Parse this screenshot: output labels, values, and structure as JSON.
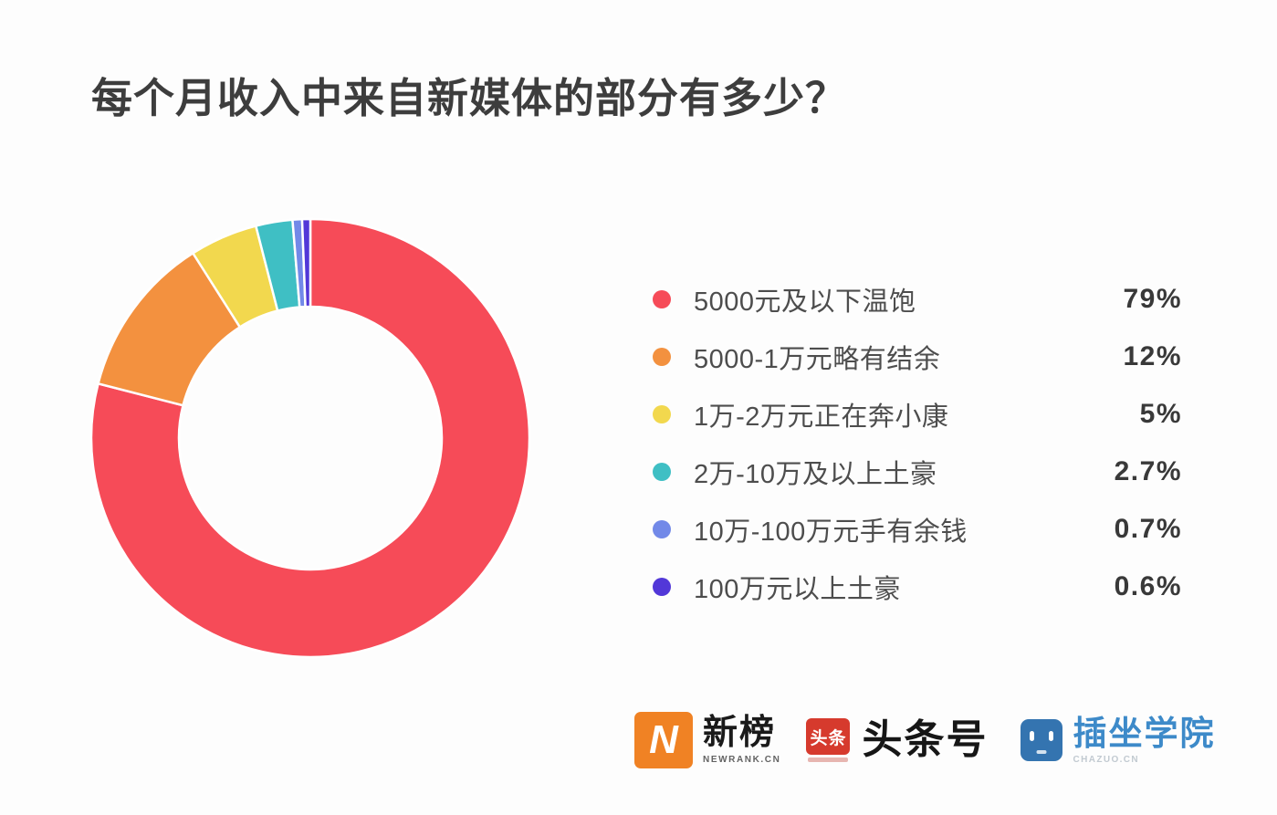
{
  "title": "每个月收入中来自新媒体的部分有多少？",
  "chart_data": {
    "type": "pie",
    "subtype": "donut",
    "title": "每个月收入中来自新媒体的部分有多少？",
    "start_angle_deg": 0,
    "direction": "clockwise",
    "inner_radius_ratio": 0.6,
    "slice_gap_color": "#ffffff",
    "legend_position": "right",
    "series": [
      {
        "label": "5000元及以下温饱",
        "value": 79,
        "display": "79%",
        "color": "#f64b58"
      },
      {
        "label": "5000-1万元略有结余",
        "value": 12,
        "display": "12%",
        "color": "#f3913f"
      },
      {
        "label": "1万-2万元正在奔小康",
        "value": 5,
        "display": "5%",
        "color": "#f2d84e"
      },
      {
        "label": "2万-10万及以上土豪",
        "value": 2.7,
        "display": "2.7%",
        "color": "#3fbfc4"
      },
      {
        "label": "10万-100万元手有余钱",
        "value": 0.7,
        "display": "0.7%",
        "color": "#7289e8"
      },
      {
        "label": "100万元以上土豪",
        "value": 0.6,
        "display": "0.6%",
        "color": "#5238d8"
      }
    ]
  },
  "footer": {
    "newrank": {
      "name": "新榜",
      "subtext": "NEWRANK.CN",
      "logo_letter": "N",
      "logo_color": "#f08224"
    },
    "toutiao": {
      "name": "头条号",
      "badge_text": "头条",
      "logo_color": "#d63a2d"
    },
    "chazuo": {
      "name": "插坐学院",
      "subtext": "CHAZUO.CN",
      "logo_color": "#3474b0",
      "text_color": "#3d8ac9"
    }
  }
}
